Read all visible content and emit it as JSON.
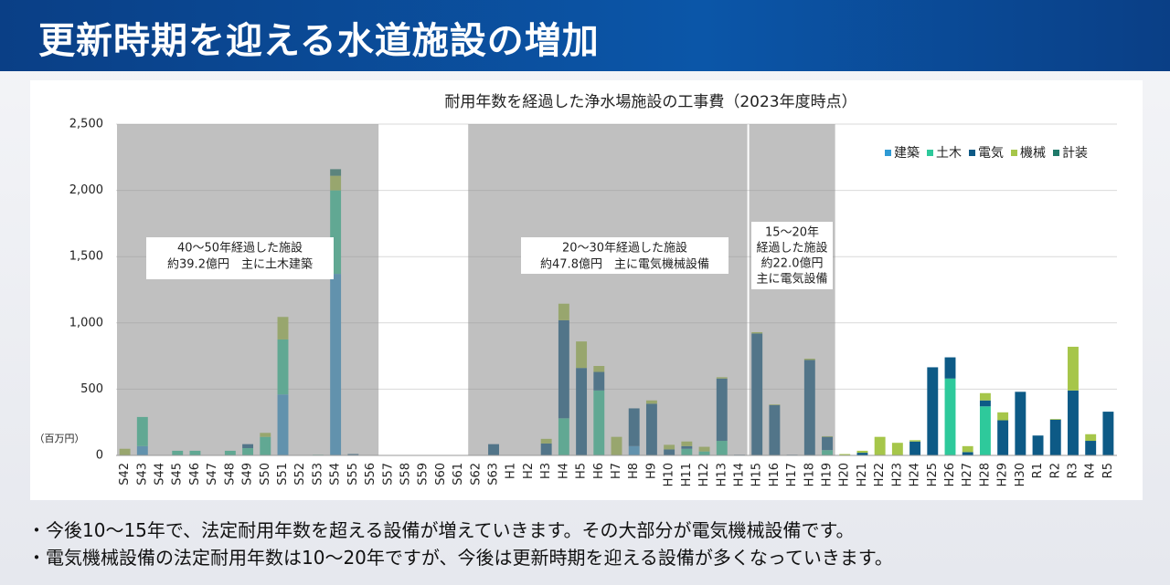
{
  "header": {
    "title": "更新時期を迎える水道施設の増加"
  },
  "chart_data": {
    "type": "stacked_bar",
    "title": "耐用年数を経過した浄水場施設の工事費（2023年度時点）",
    "y_unit_label": "（百万円）",
    "categories": [
      "S42",
      "S43",
      "S44",
      "S45",
      "S46",
      "S47",
      "S48",
      "S49",
      "S50",
      "S51",
      "S52",
      "S53",
      "S54",
      "S55",
      "S56",
      "S57",
      "S58",
      "S59",
      "S60",
      "S61",
      "S62",
      "S63",
      "H1",
      "H2",
      "H3",
      "H4",
      "H5",
      "H6",
      "H7",
      "H8",
      "H9",
      "H10",
      "H11",
      "H12",
      "H13",
      "H14",
      "H15",
      "H16",
      "H17",
      "H18",
      "H19",
      "H20",
      "H21",
      "H22",
      "H23",
      "H24",
      "H25",
      "H26",
      "H27",
      "H28",
      "H29",
      "H30",
      "R1",
      "R2",
      "R3",
      "R4",
      "R5"
    ],
    "series": [
      {
        "name": "建築",
        "color": "#2f9ad4",
        "values": [
          0,
          70,
          0,
          0,
          0,
          0,
          0,
          0,
          0,
          460,
          0,
          0,
          1370,
          0,
          0,
          0,
          0,
          0,
          0,
          0,
          0,
          0,
          0,
          0,
          0,
          0,
          0,
          0,
          0,
          70,
          0,
          0,
          0,
          0,
          0,
          0,
          0,
          0,
          0,
          0,
          0,
          0,
          0,
          0,
          0,
          0,
          0,
          0,
          0,
          0,
          0,
          0,
          0,
          0,
          0,
          0,
          0
        ]
      },
      {
        "name": "土木",
        "color": "#2ec99b",
        "values": [
          0,
          220,
          0,
          35,
          35,
          0,
          35,
          55,
          140,
          415,
          0,
          5,
          630,
          0,
          0,
          0,
          0,
          0,
          0,
          0,
          0,
          0,
          0,
          0,
          0,
          280,
          0,
          490,
          0,
          0,
          0,
          0,
          50,
          30,
          110,
          0,
          0,
          0,
          0,
          0,
          40,
          0,
          0,
          0,
          0,
          0,
          0,
          580,
          0,
          370,
          0,
          0,
          0,
          0,
          0,
          0,
          0
        ]
      },
      {
        "name": "電気",
        "color": "#0d5a86",
        "values": [
          0,
          0,
          0,
          0,
          0,
          0,
          0,
          30,
          0,
          0,
          0,
          0,
          0,
          10,
          0,
          0,
          0,
          0,
          0,
          0,
          0,
          85,
          0,
          0,
          90,
          740,
          660,
          140,
          0,
          285,
          390,
          45,
          20,
          0,
          470,
          5,
          920,
          380,
          5,
          720,
          100,
          0,
          20,
          0,
          0,
          105,
          665,
          160,
          25,
          45,
          265,
          480,
          150,
          270,
          490,
          110,
          330
        ]
      },
      {
        "name": "機械",
        "color": "#a6c64a",
        "values": [
          50,
          0,
          0,
          0,
          0,
          0,
          0,
          0,
          30,
          170,
          0,
          0,
          110,
          0,
          0,
          0,
          0,
          0,
          0,
          0,
          0,
          0,
          0,
          0,
          35,
          125,
          200,
          45,
          140,
          0,
          25,
          35,
          35,
          35,
          10,
          0,
          10,
          5,
          0,
          10,
          5,
          10,
          15,
          140,
          95,
          10,
          0,
          0,
          45,
          55,
          60,
          0,
          0,
          5,
          330,
          50,
          0
        ]
      },
      {
        "name": "計装",
        "color": "#1f7a6a",
        "values": [
          0,
          0,
          0,
          0,
          0,
          0,
          0,
          0,
          0,
          0,
          0,
          0,
          50,
          0,
          0,
          0,
          0,
          0,
          0,
          0,
          0,
          0,
          0,
          0,
          0,
          0,
          0,
          0,
          0,
          0,
          0,
          0,
          0,
          0,
          0,
          0,
          0,
          0,
          0,
          0,
          0,
          0,
          0,
          0,
          0,
          0,
          0,
          0,
          0,
          0,
          0,
          0,
          0,
          0,
          0,
          0,
          0
        ]
      }
    ],
    "ylim": [
      0,
      2500
    ],
    "yticks": [
      0,
      500,
      {
        "value": 1000,
        "label": "1,000"
      },
      {
        "value": 1500,
        "label": "1,500"
      },
      {
        "value": 2000,
        "label": "2,000"
      },
      {
        "value": 2500,
        "label": "2,500"
      }
    ],
    "grid": true,
    "legend": "upper right",
    "annotations": [
      {
        "lines": [
          "40～50年経過した施設",
          "約39.2億円　主に土木建築"
        ]
      },
      {
        "lines": [
          "20～30年経過した施設",
          "約47.8億円　主に電気機械設備"
        ]
      },
      {
        "lines": [
          "15～20年",
          "経過した施設",
          "約22.0億円",
          "主に電気設備"
        ]
      }
    ]
  },
  "notes": [
    "・今後10～15年で、法定耐用年数を超える設備が増えていきます。その大部分が電気機械設備です。",
    "・電気機械設備の法定耐用年数は10～20年ですが、今後は更新時期を迎える設備が多くなっていきます。"
  ]
}
